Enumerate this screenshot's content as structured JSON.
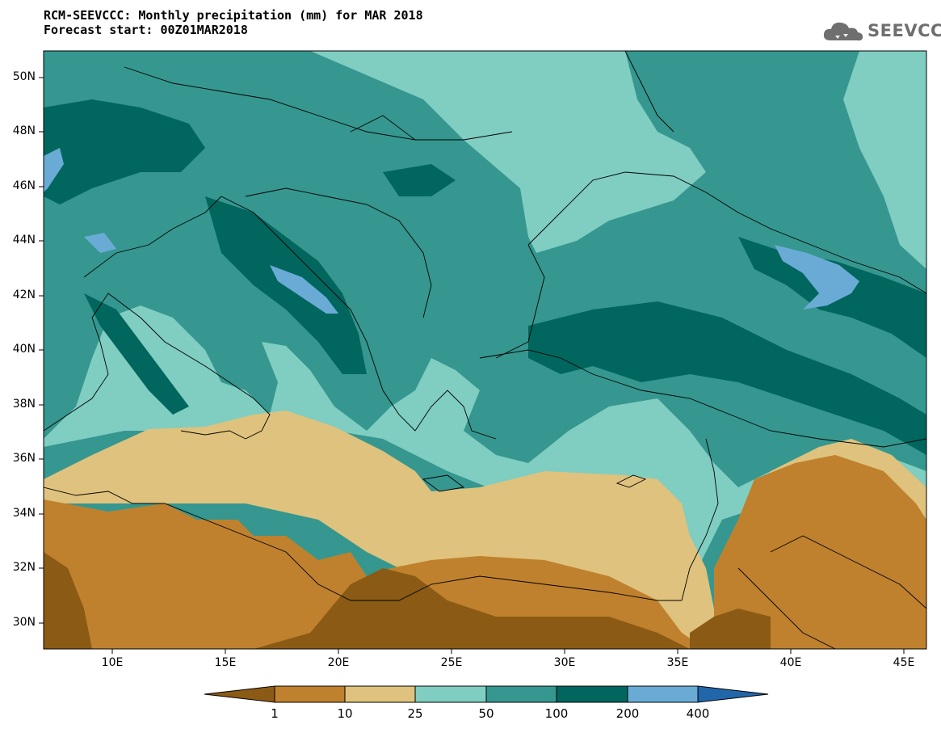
{
  "header": {
    "title_line1": "RCM-SEEVCCC: Monthly precipitation (mm) for MAR 2018",
    "title_line2": "Forecast start: 00Z01MAR2018"
  },
  "logo": {
    "text": "SEEVCCC",
    "icon": "cloud-icon"
  },
  "axes": {
    "lat_labels": [
      "50N",
      "48N",
      "46N",
      "44N",
      "42N",
      "40N",
      "38N",
      "36N",
      "34N",
      "32N",
      "30N"
    ],
    "lon_labels": [
      "10E",
      "15E",
      "20E",
      "25E",
      "30E",
      "35E",
      "40E",
      "45E"
    ]
  },
  "colorbar": {
    "ticks": [
      "1",
      "10",
      "25",
      "50",
      "100",
      "200",
      "400"
    ],
    "colors": [
      "#8b5a14",
      "#bf812d",
      "#dfc27d",
      "#80cdc1",
      "#35978f",
      "#01665e",
      "#6aabd6",
      "#2266aa"
    ]
  }
}
